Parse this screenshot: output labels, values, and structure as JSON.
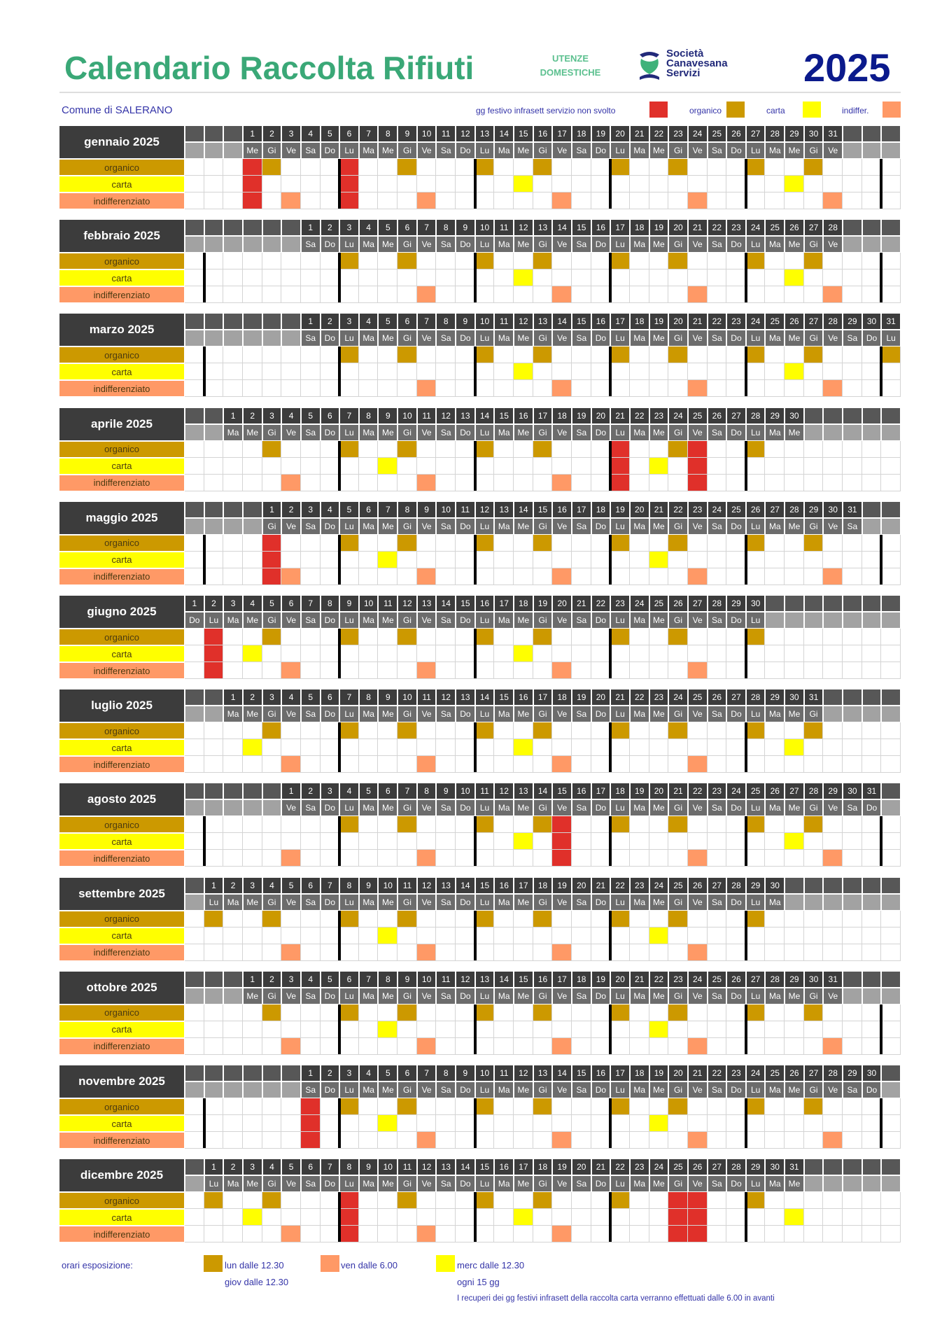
{
  "header": {
    "title": "Calendario Raccolta  Rifiuti",
    "subtitle_line1": "UTENZE",
    "subtitle_line2": "DOMESTICHE",
    "logo_text": [
      "Società",
      "Canavesana",
      "Servizi"
    ],
    "year": "2025",
    "comune": "Comune di SALERANO"
  },
  "legend": {
    "festivo": {
      "label": "gg festivo infrasett servizio non svolto",
      "color": "#e0302a"
    },
    "organico": {
      "label": "organico",
      "color": "#cc9900"
    },
    "carta": {
      "label": "carta",
      "color": "#ffff00"
    },
    "indiff": {
      "label": "indiffer.",
      "color": "#ff9966"
    }
  },
  "row_labels": [
    "organico",
    "carta",
    "indifferenziato"
  ],
  "weekday_labels": [
    "Do",
    "Lu",
    "Ma",
    "Me",
    "Gi",
    "Ve",
    "Sa"
  ],
  "months": [
    {
      "name": "gennaio 2025",
      "start_weekday": "Me",
      "days": 31,
      "festivi": [
        1,
        6
      ],
      "organico": [
        2,
        9,
        13,
        16,
        20,
        23,
        27,
        30
      ],
      "carta": [
        15,
        29
      ],
      "indifferenziato": [
        3,
        10,
        17,
        24,
        31
      ]
    },
    {
      "name": "febbraio 2025",
      "start_weekday": "Sa",
      "days": 28,
      "festivi": [],
      "organico": [
        3,
        6,
        10,
        13,
        17,
        20,
        24,
        27
      ],
      "carta": [
        12,
        26
      ],
      "indifferenziato": [
        7,
        14,
        21,
        28
      ]
    },
    {
      "name": "marzo 2025",
      "start_weekday": "Sa",
      "days": 31,
      "festivi": [],
      "organico": [
        3,
        6,
        10,
        13,
        17,
        20,
        24,
        27,
        31
      ],
      "carta": [
        12,
        26
      ],
      "indifferenziato": [
        7,
        14,
        21,
        28
      ]
    },
    {
      "name": "aprile 2025",
      "start_weekday": "Ma",
      "days": 30,
      "festivi": [
        21,
        25
      ],
      "organico": [
        3,
        7,
        10,
        14,
        17,
        24,
        28
      ],
      "carta": [
        9,
        23
      ],
      "indifferenziato": [
        4,
        11,
        18
      ]
    },
    {
      "name": "maggio 2025",
      "start_weekday": "Gi",
      "days": 31,
      "festivi": [
        1
      ],
      "organico": [
        5,
        8,
        12,
        15,
        19,
        22,
        26,
        29
      ],
      "carta": [
        7,
        21
      ],
      "indifferenziato": [
        2,
        9,
        16,
        23,
        30
      ]
    },
    {
      "name": "giugno 2025",
      "start_weekday": "Do",
      "days": 30,
      "festivi": [
        2
      ],
      "organico": [
        5,
        9,
        12,
        16,
        19,
        23,
        26,
        30
      ],
      "carta": [
        4,
        18
      ],
      "indifferenziato": [
        6,
        13,
        20,
        27
      ]
    },
    {
      "name": "luglio 2025",
      "start_weekday": "Ma",
      "days": 31,
      "festivi": [],
      "organico": [
        3,
        7,
        10,
        14,
        17,
        21,
        24,
        28,
        31
      ],
      "carta": [
        2,
        16,
        30
      ],
      "indifferenziato": [
        4,
        11,
        18,
        25
      ]
    },
    {
      "name": "agosto 2025",
      "start_weekday": "Ve",
      "days": 31,
      "festivi": [
        15
      ],
      "organico": [
        4,
        7,
        11,
        14,
        18,
        21,
        25,
        28
      ],
      "carta": [
        13,
        27
      ],
      "indifferenziato": [
        1,
        8,
        22,
        29
      ]
    },
    {
      "name": "settembre 2025",
      "start_weekday": "Lu",
      "days": 30,
      "festivi": [],
      "organico": [
        1,
        4,
        8,
        11,
        15,
        18,
        22,
        25,
        29
      ],
      "carta": [
        10,
        24
      ],
      "indifferenziato": [
        5,
        12,
        19,
        26
      ]
    },
    {
      "name": "ottobre 2025",
      "start_weekday": "Me",
      "days": 31,
      "festivi": [],
      "organico": [
        2,
        6,
        9,
        13,
        16,
        20,
        23,
        27,
        30
      ],
      "carta": [
        8,
        22
      ],
      "indifferenziato": [
        3,
        10,
        17,
        24,
        31
      ]
    },
    {
      "name": "novembre 2025",
      "start_weekday": "Sa",
      "days": 30,
      "festivi": [
        1
      ],
      "organico": [
        3,
        6,
        10,
        13,
        17,
        20,
        24,
        27
      ],
      "carta": [
        5,
        19
      ],
      "indifferenziato": [
        7,
        14,
        21,
        28
      ]
    },
    {
      "name": "dicembre 2025",
      "start_weekday": "Lu",
      "days": 31,
      "festivi": [
        8,
        25,
        26
      ],
      "organico": [
        1,
        4,
        11,
        15,
        18,
        22,
        29
      ],
      "carta": [
        3,
        17,
        31
      ],
      "indifferenziato": [
        5,
        12,
        19
      ]
    }
  ],
  "footer": {
    "label": "orari esposizione:",
    "organico_line1": "lun dalle 12.30",
    "organico_line2": "giov  dalle 12.30",
    "indiff_line1": "ven dalle 6.00",
    "carta_line1": "merc dalle 12.30",
    "carta_line2": "ogni 15 gg",
    "note": "I recuperi dei gg festivi infrasett della raccolta carta verranno effettuati dalle 6.00 in avanti"
  }
}
